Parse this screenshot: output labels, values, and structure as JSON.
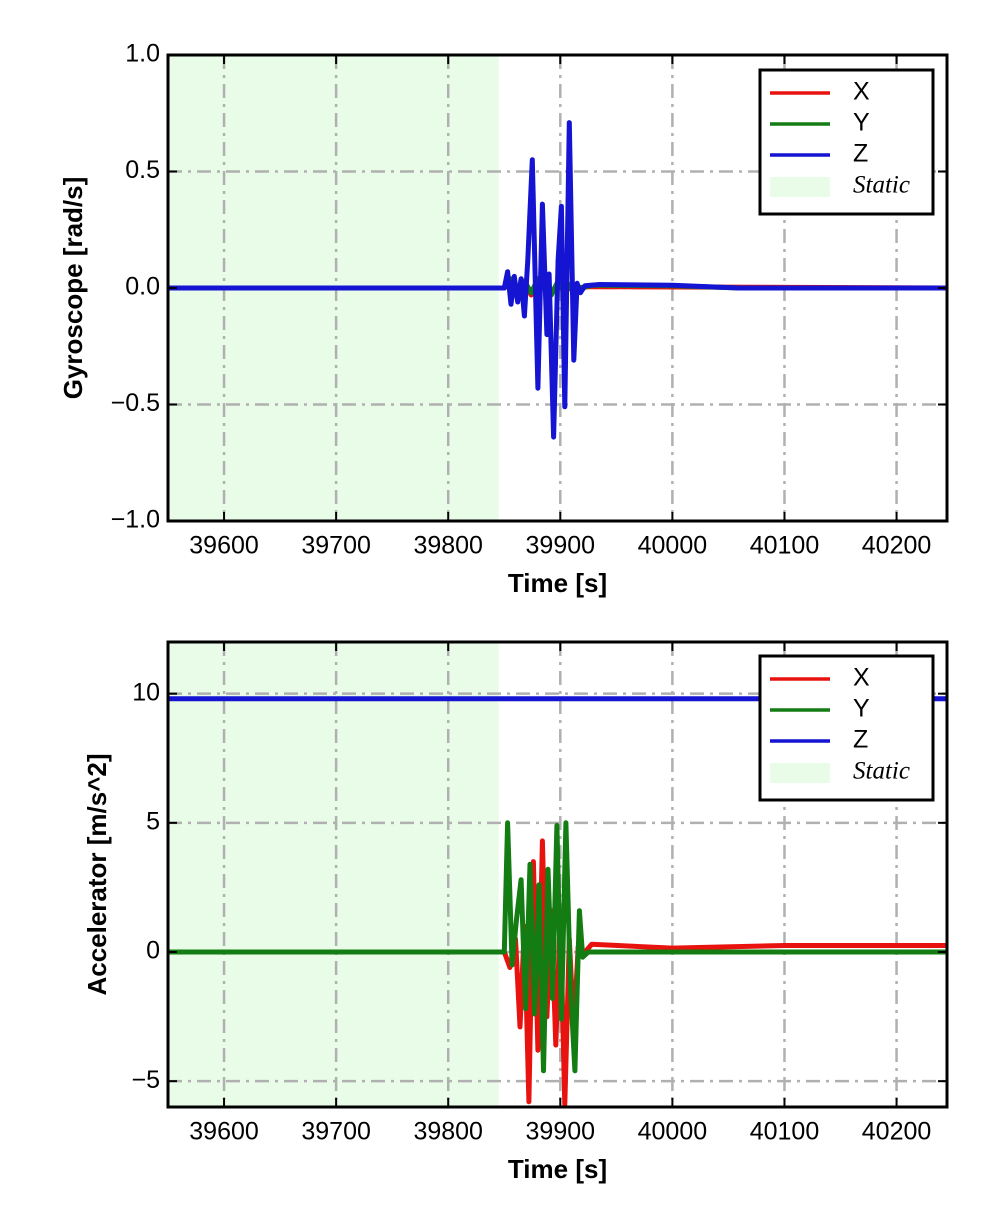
{
  "chart_data": [
    {
      "type": "line",
      "xlabel": "Time [s]",
      "ylabel": "Gyroscope [rad/s]",
      "xlim": [
        39550,
        40245
      ],
      "ylim": [
        -1.0,
        1.0
      ],
      "xticks": [
        39600,
        39700,
        39800,
        39900,
        40000,
        40100,
        40200
      ],
      "xtick_labels": [
        "39600",
        "39700",
        "39800",
        "39900",
        "40000",
        "40100",
        "40200"
      ],
      "yticks": [
        -1.0,
        -0.5,
        0.0,
        0.5,
        1.0
      ],
      "ytick_labels": [
        "−1.0",
        "−0.5",
        "0.0",
        "0.5",
        "1.0"
      ],
      "grid": true,
      "legend_position": "top-right",
      "static_region": {
        "label": "Static",
        "x_start": 39550,
        "x_end": 39845,
        "color": "#e8fce8"
      },
      "series": [
        {
          "name": "X",
          "color": "#e8130f",
          "x": [
            39550,
            39850,
            39856,
            39862,
            39868,
            39874,
            39880,
            39886,
            39892,
            39898,
            39904,
            39910,
            39916,
            39925,
            39960,
            40245
          ],
          "y": [
            0,
            0,
            0.03,
            -0.04,
            0.02,
            -0.03,
            0.02,
            0.03,
            -0.02,
            0.02,
            -0.02,
            0.01,
            0.0,
            0.005,
            0.005,
            0
          ]
        },
        {
          "name": "Y",
          "color": "#137d13",
          "x": [
            39550,
            39850,
            39856,
            39862,
            39868,
            39874,
            39880,
            39886,
            39892,
            39898,
            39904,
            39910,
            39916,
            39930,
            40000,
            40060,
            40245
          ],
          "y": [
            0,
            0,
            0.04,
            -0.05,
            0.03,
            -0.02,
            0.04,
            0.02,
            -0.03,
            0.03,
            -0.02,
            0.02,
            0.0,
            0.012,
            0.01,
            0.0,
            0
          ]
        },
        {
          "name": "Z",
          "color": "#1414d2",
          "x": [
            39550,
            39850,
            39853,
            39856,
            39859,
            39862,
            39865,
            39868,
            39871,
            39875,
            39880,
            39884,
            39888,
            39890,
            39894,
            39898,
            39901,
            39904,
            39908,
            39912,
            39915,
            39918,
            39922,
            39935,
            40000,
            40060,
            40245
          ],
          "y": [
            0,
            0,
            0.07,
            -0.07,
            0.05,
            -0.06,
            0.04,
            -0.12,
            0.12,
            0.55,
            -0.43,
            0.36,
            -0.2,
            0.06,
            -0.64,
            0.12,
            0.35,
            -0.51,
            0.71,
            -0.31,
            0.02,
            -0.02,
            0.01,
            0.015,
            0.012,
            0.0,
            0
          ]
        }
      ]
    },
    {
      "type": "line",
      "xlabel": "Time [s]",
      "ylabel": "Accelerator [m/s^2]",
      "xlim": [
        39550,
        40245
      ],
      "ylim": [
        -6.0,
        12.0
      ],
      "xticks": [
        39600,
        39700,
        39800,
        39900,
        40000,
        40100,
        40200
      ],
      "xtick_labels": [
        "39600",
        "39700",
        "39800",
        "39900",
        "40000",
        "40100",
        "40200"
      ],
      "yticks": [
        -5,
        0,
        5,
        10
      ],
      "ytick_labels": [
        "−5",
        "0",
        "5",
        "10"
      ],
      "grid": true,
      "legend_position": "top-right",
      "static_region": {
        "label": "Static",
        "x_start": 39550,
        "x_end": 39845,
        "color": "#e8fce8"
      },
      "series": [
        {
          "name": "X",
          "color": "#e8130f",
          "x": [
            39550,
            39850,
            39855,
            39860,
            39864,
            39868,
            39872,
            39876,
            39880,
            39884,
            39888,
            39892,
            39896,
            39900,
            39904,
            39908,
            39912,
            39916,
            39920,
            39928,
            40000,
            40100,
            40245
          ],
          "y": [
            0,
            0,
            -0.6,
            0.5,
            -2.9,
            1.0,
            -5.8,
            3.5,
            -3.8,
            4.3,
            -2.5,
            1.6,
            -3.6,
            1.5,
            -5.9,
            0.5,
            -3.0,
            0.2,
            -0.1,
            0.3,
            0.15,
            0.25,
            0.25
          ]
        },
        {
          "name": "Y",
          "color": "#137d13",
          "x": [
            39550,
            39850,
            39853,
            39857,
            39861,
            39865,
            39869,
            39873,
            39877,
            39881,
            39885,
            39889,
            39893,
            39897,
            39901,
            39905,
            39909,
            39913,
            39917,
            39920,
            39925,
            40245
          ],
          "y": [
            0,
            0,
            5.0,
            -0.5,
            1.3,
            2.8,
            -2.2,
            3.4,
            -2.4,
            2.6,
            -4.6,
            3.2,
            -1.8,
            4.9,
            -2.6,
            5.0,
            -1.3,
            -4.6,
            1.6,
            -0.2,
            0,
            0
          ]
        },
        {
          "name": "Z",
          "color": "#1414d2",
          "x": [
            39550,
            40245
          ],
          "y": [
            9.8,
            9.8
          ]
        }
      ]
    }
  ]
}
